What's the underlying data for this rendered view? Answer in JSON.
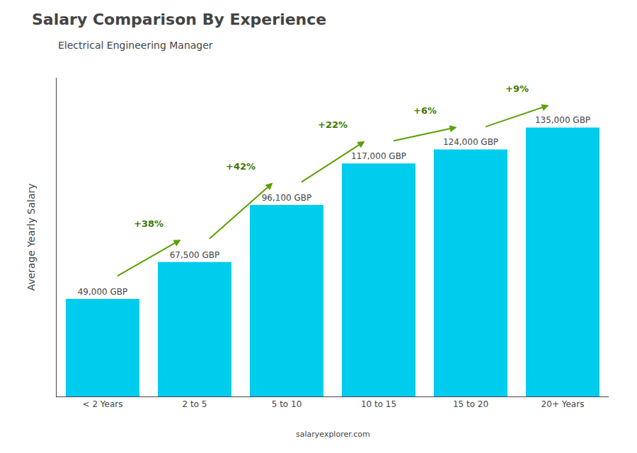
{
  "chart_data": {
    "type": "bar",
    "title": "Salary Comparison By Experience",
    "subtitle": "Electrical Engineering Manager",
    "y_label": "Average Yearly Salary",
    "footer": "salaryexplorer.com",
    "categories": [
      "< 2 Years",
      "2 to 5",
      "5 to 10",
      "10 to 15",
      "15 to 20",
      "20+ Years"
    ],
    "values": [
      49000,
      67500,
      96100,
      117000,
      124000,
      135000
    ],
    "value_labels": [
      "49,000 GBP",
      "67,500 GBP",
      "96,100 GBP",
      "117,000 GBP",
      "124,000 GBP",
      "135,000 GBP"
    ],
    "annotations": [
      "+38%",
      "+42%",
      "+22%",
      "+6%",
      "+9%"
    ],
    "color": "#00ccee",
    "ylim": [
      0,
      160000
    ],
    "data_labels": true,
    "tick_labels": "x",
    "grid": false
  }
}
